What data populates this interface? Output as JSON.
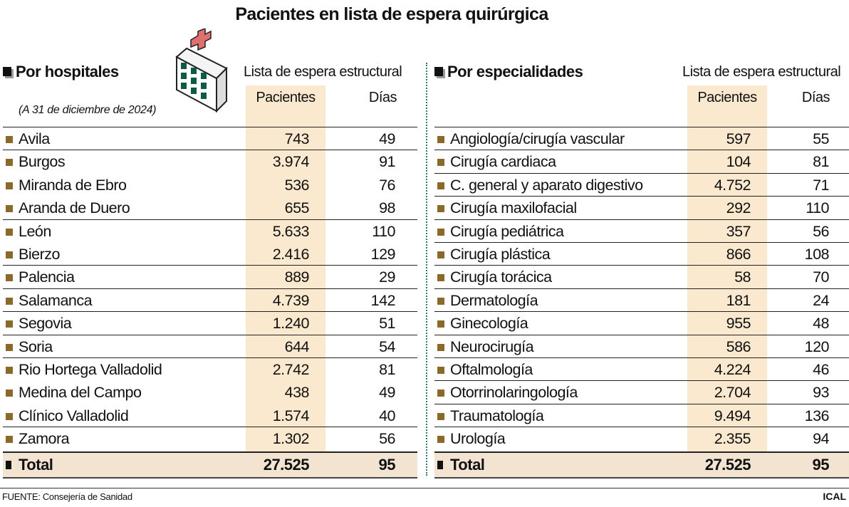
{
  "title": "Pacientes en lista de espera quirúrgica",
  "chart_data": {
    "type": "table",
    "title": "Pacientes en lista de espera quirúrgica",
    "tables": [
      {
        "heading": "Por hospitales",
        "subtitle": "(A 31 de diciembre de 2024)",
        "group_header": "Lista de espera estructural",
        "columns": [
          "Pacientes",
          "Días"
        ],
        "rows": [
          {
            "label": "Avila",
            "pacientes": "743",
            "dias": "49"
          },
          {
            "label": "Burgos",
            "pacientes": "3.974",
            "dias": "91"
          },
          {
            "label": "Miranda de Ebro",
            "pacientes": "536",
            "dias": "76"
          },
          {
            "label": "Aranda de Duero",
            "pacientes": "655",
            "dias": "98"
          },
          {
            "label": "León",
            "pacientes": "5.633",
            "dias": "110"
          },
          {
            "label": "Bierzo",
            "pacientes": "2.416",
            "dias": "129"
          },
          {
            "label": "Palencia",
            "pacientes": "889",
            "dias": "29"
          },
          {
            "label": "Salamanca",
            "pacientes": "4.739",
            "dias": "142"
          },
          {
            "label": "Segovia",
            "pacientes": "1.240",
            "dias": "51"
          },
          {
            "label": "Soria",
            "pacientes": "644",
            "dias": "54"
          },
          {
            "label": "Rio Hortega Valladolid",
            "pacientes": "2.742",
            "dias": "81"
          },
          {
            "label": "Medina del Campo",
            "pacientes": "438",
            "dias": "49"
          },
          {
            "label": "Clínico Valladolid",
            "pacientes": "1.574",
            "dias": "40"
          },
          {
            "label": "Zamora",
            "pacientes": "1.302",
            "dias": "56"
          }
        ],
        "total": {
          "label": "Total",
          "pacientes": "27.525",
          "dias": "95"
        }
      },
      {
        "heading": "Por especialidades",
        "group_header": "Lista de espera estructural",
        "columns": [
          "Pacientes",
          "Días"
        ],
        "rows": [
          {
            "label": "Angiología/cirugía vascular",
            "pacientes": "597",
            "dias": "55"
          },
          {
            "label": "Cirugía cardiaca",
            "pacientes": "104",
            "dias": "81"
          },
          {
            "label": "C. general y aparato digestivo",
            "pacientes": "4.752",
            "dias": "71"
          },
          {
            "label": "Cirugía maxilofacial",
            "pacientes": "292",
            "dias": "110"
          },
          {
            "label": "Cirugía pediátrica",
            "pacientes": "357",
            "dias": "56"
          },
          {
            "label": "Cirugía plástica",
            "pacientes": "866",
            "dias": "108"
          },
          {
            "label": "Cirugía torácica",
            "pacientes": "58",
            "dias": "70"
          },
          {
            "label": "Dermatología",
            "pacientes": "181",
            "dias": "24"
          },
          {
            "label": "Ginecología",
            "pacientes": "955",
            "dias": "48"
          },
          {
            "label": "Neurocirugía",
            "pacientes": "586",
            "dias": "120"
          },
          {
            "label": "Oftalmología",
            "pacientes": "4.224",
            "dias": "46"
          },
          {
            "label": "Otorrinolaringología",
            "pacientes": "2.704",
            "dias": "93"
          },
          {
            "label": "Traumatología",
            "pacientes": "9.494",
            "dias": "136"
          },
          {
            "label": "Urología",
            "pacientes": "2.355",
            "dias": "94"
          }
        ],
        "total": {
          "label": "Total",
          "pacientes": "27.525",
          "dias": "95"
        }
      }
    ]
  },
  "colors": {
    "highlight_column": "#fbe9cf",
    "total_row": "#f3e4d2",
    "bullet": "#8a6a2a",
    "divider": "#2a7a6a",
    "cross": "#e07070",
    "windows": "#0f5a45"
  },
  "icons": {
    "hospital": "hospital-building-icon"
  },
  "footer": {
    "source": "FUENTE: Consejería de Sanidad",
    "brand": "ICAL"
  }
}
